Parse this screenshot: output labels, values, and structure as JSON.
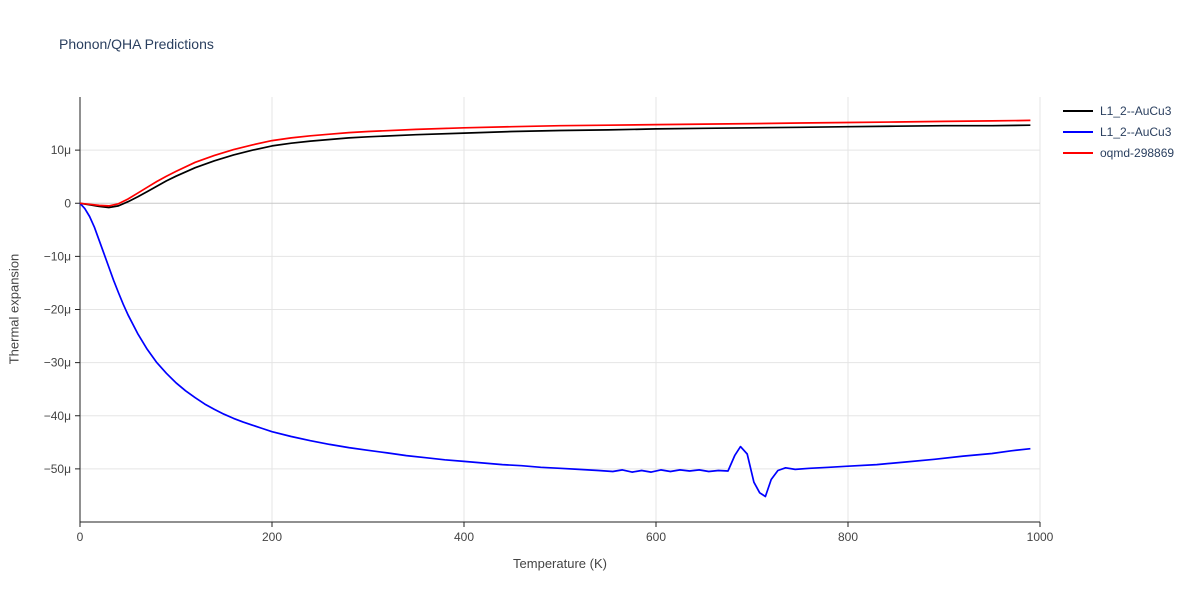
{
  "chart_data": {
    "type": "line",
    "title": "Phonon/QHA Predictions",
    "xlabel": "Temperature (K)",
    "ylabel": "Thermal expansion",
    "xlim": [
      0,
      1000
    ],
    "ylim": [
      -60,
      20
    ],
    "grid": true,
    "legend_position": "top-right",
    "x_ticks": [
      {
        "value": 0,
        "label": "0"
      },
      {
        "value": 200,
        "label": "200"
      },
      {
        "value": 400,
        "label": "400"
      },
      {
        "value": 600,
        "label": "600"
      },
      {
        "value": 800,
        "label": "800"
      },
      {
        "value": 1000,
        "label": "1000"
      }
    ],
    "y_ticks": [
      {
        "value": 10,
        "label": "10μ"
      },
      {
        "value": 0,
        "label": "0"
      },
      {
        "value": -10,
        "label": "−10μ"
      },
      {
        "value": -20,
        "label": "−20μ"
      },
      {
        "value": -30,
        "label": "−30μ"
      },
      {
        "value": -40,
        "label": "−40μ"
      },
      {
        "value": -50,
        "label": "−50μ"
      }
    ],
    "colors": {
      "grid": "#e5e5e5",
      "zeroline": "#c8c8c8",
      "axis": "#222222",
      "tick_text": "#444444",
      "title": "#2a3f5f"
    },
    "series": [
      {
        "name": "L1_2--AuCu3",
        "color": "#000000",
        "x": [
          0,
          10,
          20,
          30,
          40,
          50,
          60,
          70,
          80,
          90,
          100,
          120,
          140,
          160,
          180,
          200,
          220,
          240,
          260,
          280,
          300,
          350,
          400,
          450,
          500,
          550,
          600,
          650,
          700,
          750,
          800,
          850,
          900,
          950,
          990
        ],
        "y": [
          0,
          -0.3,
          -0.6,
          -0.8,
          -0.5,
          0.3,
          1.2,
          2.2,
          3.2,
          4.2,
          5.1,
          6.7,
          8.0,
          9.1,
          10.0,
          10.8,
          11.3,
          11.7,
          12.0,
          12.3,
          12.5,
          12.9,
          13.2,
          13.5,
          13.7,
          13.8,
          14.0,
          14.1,
          14.2,
          14.3,
          14.4,
          14.5,
          14.6,
          14.6,
          14.7
        ]
      },
      {
        "name": "L1_2--AuCu3",
        "color": "#0000ff",
        "x": [
          0,
          5,
          10,
          15,
          20,
          25,
          30,
          35,
          40,
          45,
          50,
          60,
          70,
          80,
          90,
          100,
          110,
          120,
          130,
          140,
          150,
          160,
          170,
          180,
          190,
          200,
          220,
          240,
          260,
          280,
          300,
          320,
          340,
          360,
          380,
          400,
          420,
          440,
          460,
          480,
          500,
          520,
          540,
          555,
          565,
          575,
          585,
          595,
          605,
          615,
          625,
          635,
          645,
          655,
          665,
          675,
          682,
          688,
          695,
          702,
          708,
          714,
          720,
          727,
          735,
          745,
          760,
          780,
          800,
          830,
          860,
          890,
          920,
          950,
          970,
          990
        ],
        "y": [
          0,
          -1,
          -2.5,
          -4.5,
          -7,
          -9.5,
          -12,
          -14.5,
          -16.8,
          -19,
          -21,
          -24.5,
          -27.5,
          -30,
          -32,
          -33.8,
          -35.3,
          -36.6,
          -37.8,
          -38.8,
          -39.7,
          -40.5,
          -41.2,
          -41.8,
          -42.4,
          -43,
          -43.9,
          -44.7,
          -45.4,
          -46,
          -46.5,
          -47,
          -47.5,
          -47.9,
          -48.3,
          -48.6,
          -48.9,
          -49.2,
          -49.4,
          -49.7,
          -49.9,
          -50.1,
          -50.3,
          -50.5,
          -50.2,
          -50.6,
          -50.3,
          -50.6,
          -50.2,
          -50.5,
          -50.2,
          -50.4,
          -50.2,
          -50.5,
          -50.3,
          -50.4,
          -47.5,
          -45.8,
          -47.2,
          -52.5,
          -54.5,
          -55.2,
          -52,
          -50.3,
          -49.8,
          -50.1,
          -49.9,
          -49.7,
          -49.5,
          -49.2,
          -48.7,
          -48.2,
          -47.6,
          -47.1,
          -46.6,
          -46.2
        ]
      },
      {
        "name": "oqmd-298869",
        "color": "#ff0000",
        "x": [
          0,
          10,
          20,
          30,
          40,
          50,
          60,
          70,
          80,
          90,
          100,
          120,
          140,
          160,
          180,
          200,
          220,
          240,
          260,
          280,
          300,
          350,
          400,
          450,
          500,
          550,
          600,
          650,
          700,
          750,
          800,
          850,
          900,
          950,
          990
        ],
        "y": [
          0,
          -0.2,
          -0.4,
          -0.5,
          -0.1,
          0.8,
          1.9,
          3.0,
          4.1,
          5.1,
          6.0,
          7.7,
          9.0,
          10.1,
          11.0,
          11.8,
          12.3,
          12.7,
          13.0,
          13.3,
          13.5,
          13.9,
          14.2,
          14.4,
          14.6,
          14.7,
          14.8,
          14.9,
          15.0,
          15.1,
          15.2,
          15.3,
          15.4,
          15.5,
          15.6
        ]
      }
    ]
  }
}
